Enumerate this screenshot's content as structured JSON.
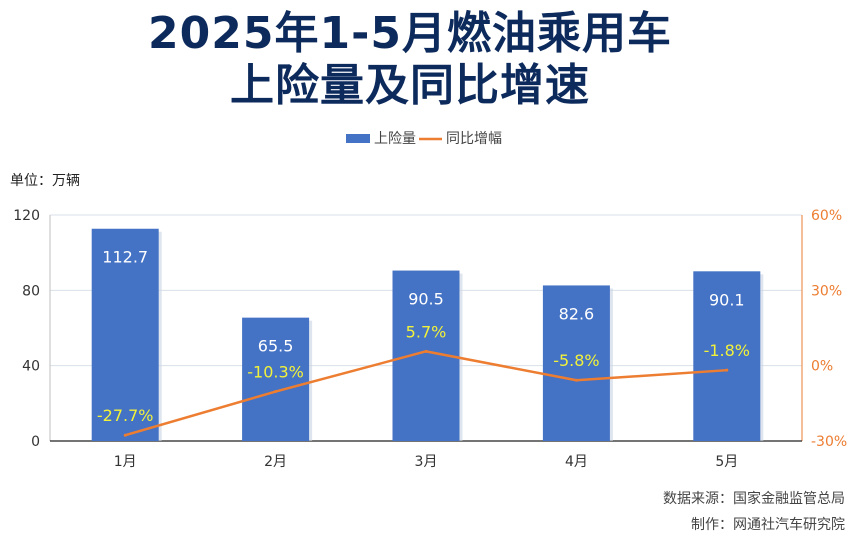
{
  "title": {
    "line1": "2025年1-5月燃油乘用车",
    "line2": "上险量及同比增速"
  },
  "unit_label": "单位：万辆",
  "source": "数据来源：国家金融监管总局",
  "maker": "制作：网通社汽车研究院",
  "colors": {
    "bar": "#4472c4",
    "line": "#ed7d31",
    "title": "#0d2a5c",
    "bar_label": "#ffffff",
    "line_label": "#f2f23a",
    "right_axis": "#ed7d31"
  },
  "chart_data": {
    "type": "bar",
    "categories": [
      "1月",
      "2月",
      "3月",
      "4月",
      "5月"
    ],
    "series": [
      {
        "name": "上险量",
        "type": "bar",
        "axis": "left",
        "values": [
          112.7,
          65.5,
          90.5,
          82.6,
          90.1
        ],
        "labels": [
          "112.7",
          "65.5",
          "90.5",
          "82.6",
          "90.1"
        ]
      },
      {
        "name": "同比增幅",
        "type": "line",
        "axis": "right",
        "values": [
          -27.7,
          -10.3,
          5.7,
          -5.8,
          -1.8
        ],
        "labels": [
          "-27.7%",
          "-10.3%",
          "5.7%",
          "-5.8%",
          "-1.8%"
        ]
      }
    ],
    "y_left": {
      "min": 0,
      "max": 120,
      "ticks": [
        "0",
        "40",
        "80",
        "120"
      ]
    },
    "y_right": {
      "min": -30,
      "max": 60,
      "ticks": [
        "-30%",
        "0%",
        "30%",
        "60%"
      ]
    },
    "legend": {
      "position": "top",
      "items": [
        "上险量",
        "同比增幅"
      ]
    },
    "grid": true
  }
}
